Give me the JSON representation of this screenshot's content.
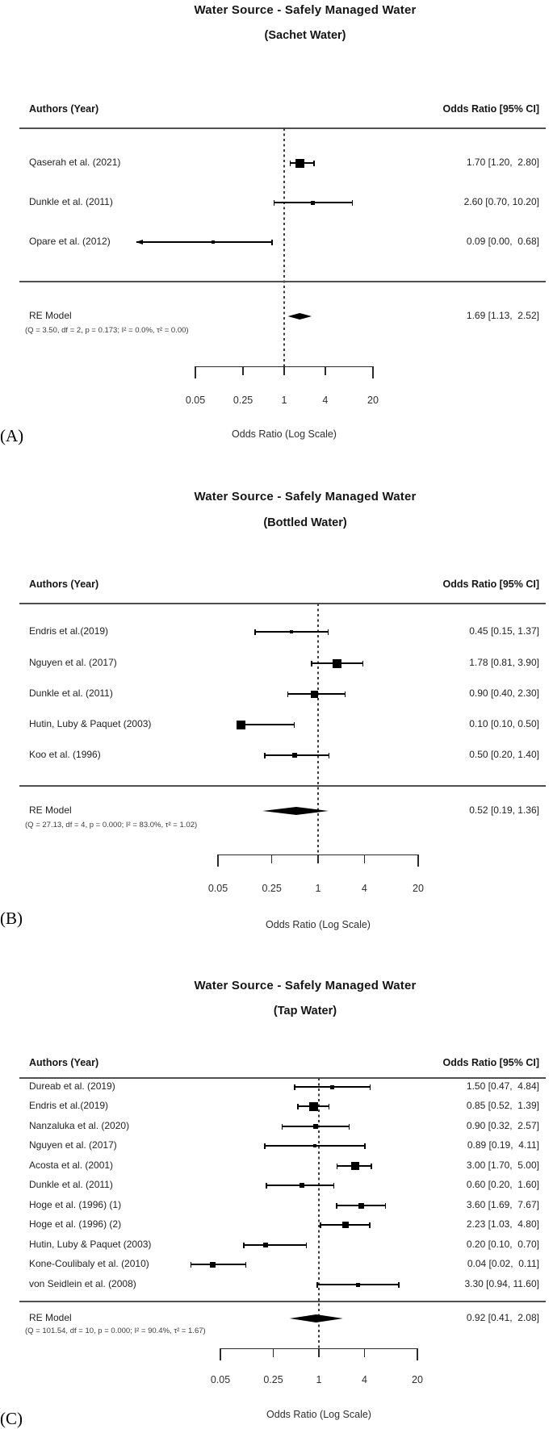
{
  "chart_data": [
    {
      "type": "forest",
      "title": "Water Source - Safely Managed Water",
      "subtitle": "(Sachet Water)",
      "letter": "(A)",
      "col_author": "Authors (Year)",
      "col_or": "Odds Ratio [95% CI]",
      "xlabel": "Odds Ratio (Log Scale)",
      "x_scale": "log",
      "x_range": [
        0.05,
        20
      ],
      "x_ticks": [
        0.05,
        0.25,
        1,
        4,
        20
      ],
      "x_tick_labels": [
        "0.05",
        "0.25",
        "1",
        "4",
        "20"
      ],
      "ref_line": 1,
      "studies": [
        {
          "author": "Qaserah et al. (2021)",
          "or": 1.7,
          "ci_low": 1.2,
          "ci_high": 2.8,
          "value_label": "1.70 [1.20,  2.80]",
          "marker_size": 11
        },
        {
          "author": "Dunkle et al. (2011)",
          "or": 2.6,
          "ci_low": 0.7,
          "ci_high": 10.2,
          "value_label": "2.60 [0.70, 10.20]",
          "marker_size": 5
        },
        {
          "author": "Opare et al. (2012)",
          "or": 0.09,
          "ci_low": 0.0,
          "ci_high": 0.68,
          "value_label": "0.09 [0.00,  0.68]",
          "marker_size": 4,
          "arrow_left": true
        }
      ],
      "re": {
        "label": "RE Model",
        "or": 1.69,
        "ci_low": 1.13,
        "ci_high": 2.52,
        "value_label": "1.69 [1.13,  2.52]",
        "stats": "(Q = 3.50, df = 2, p = 0.173; I² = 0.0%, τ² = 0.00)"
      }
    },
    {
      "type": "forest",
      "title": "Water Source - Safely Managed Water",
      "subtitle": "(Bottled Water)",
      "letter": "(B)",
      "col_author": "Authors (Year)",
      "col_or": "Odds Ratio [95% CI]",
      "xlabel": "Odds Ratio (Log Scale)",
      "x_scale": "log",
      "x_range": [
        0.05,
        20
      ],
      "x_ticks": [
        0.05,
        0.25,
        1,
        4,
        20
      ],
      "x_tick_labels": [
        "0.05",
        "0.25",
        "1",
        "4",
        "20"
      ],
      "ref_line": 1,
      "studies": [
        {
          "author": "Endris et al.(2019)",
          "or": 0.45,
          "ci_low": 0.15,
          "ci_high": 1.37,
          "value_label": "0.45 [0.15, 1.37]",
          "marker_size": 4
        },
        {
          "author": "Nguyen et al. (2017)",
          "or": 1.78,
          "ci_low": 0.81,
          "ci_high": 3.9,
          "value_label": "1.78 [0.81, 3.90]",
          "marker_size": 11
        },
        {
          "author": "Dunkle et al. (2011)",
          "or": 0.9,
          "ci_low": 0.4,
          "ci_high": 2.3,
          "value_label": "0.90 [0.40, 2.30]",
          "marker_size": 9
        },
        {
          "author": "Hutin, Luby & Paquet (2003)",
          "or": 0.1,
          "ci_low": 0.1,
          "ci_high": 0.5,
          "value_label": "0.10 [0.10, 0.50]",
          "marker_size": 11
        },
        {
          "author": "Koo et al. (1996)",
          "or": 0.5,
          "ci_low": 0.2,
          "ci_high": 1.4,
          "value_label": "0.50 [0.20, 1.40]",
          "marker_size": 6
        }
      ],
      "re": {
        "label": "RE Model",
        "or": 0.52,
        "ci_low": 0.19,
        "ci_high": 1.36,
        "value_label": "0.52 [0.19, 1.36]",
        "stats": "(Q = 27.13, df = 4, p = 0.000; I² = 83.0%, τ² = 1.02)"
      }
    },
    {
      "type": "forest",
      "title": "Water Source - Safely Managed Water",
      "subtitle": "(Tap Water)",
      "letter": "(C)",
      "col_author": "Authors (Year)",
      "col_or": "Odds Ratio [95% CI]",
      "xlabel": "Odds Ratio (Log Scale)",
      "x_scale": "log",
      "x_range": [
        0.05,
        20
      ],
      "x_ticks": [
        0.05,
        0.25,
        1,
        4,
        20
      ],
      "x_tick_labels": [
        "0.05",
        "0.25",
        "1",
        "4",
        "20"
      ],
      "ref_line": 1,
      "studies": [
        {
          "author": "Dureab et al. (2019)",
          "or": 1.5,
          "ci_low": 0.47,
          "ci_high": 4.84,
          "value_label": "1.50 [0.47,  4.84]",
          "marker_size": 5
        },
        {
          "author": "Endris et al.(2019)",
          "or": 0.85,
          "ci_low": 0.52,
          "ci_high": 1.39,
          "value_label": "0.85 [0.52,  1.39]",
          "marker_size": 11
        },
        {
          "author": "Nanzaluka et al. (2020)",
          "or": 0.9,
          "ci_low": 0.32,
          "ci_high": 2.57,
          "value_label": "0.90 [0.32,  2.57]",
          "marker_size": 6
        },
        {
          "author": "Nguyen et al. (2017)",
          "or": 0.89,
          "ci_low": 0.19,
          "ci_high": 4.11,
          "value_label": "0.89 [0.19,  4.11]",
          "marker_size": 4
        },
        {
          "author": "Acosta et al. (2001)",
          "or": 3.0,
          "ci_low": 1.7,
          "ci_high": 5.0,
          "value_label": "3.00 [1.70,  5.00]",
          "marker_size": 10
        },
        {
          "author": "Dunkle et al. (2011)",
          "or": 0.6,
          "ci_low": 0.2,
          "ci_high": 1.6,
          "value_label": "0.60 [0.20,  1.60]",
          "marker_size": 6
        },
        {
          "author": "Hoge et al. (1996) (1)",
          "or": 3.6,
          "ci_low": 1.69,
          "ci_high": 7.67,
          "value_label": "3.60 [1.69,  7.67]",
          "marker_size": 7
        },
        {
          "author": "Hoge et al. (1996) (2)",
          "or": 2.23,
          "ci_low": 1.03,
          "ci_high": 4.8,
          "value_label": "2.23 [1.03,  4.80]",
          "marker_size": 8
        },
        {
          "author": "Hutin, Luby & Paquet (2003)",
          "or": 0.2,
          "ci_low": 0.1,
          "ci_high": 0.7,
          "value_label": "0.20 [0.10,  0.70]",
          "marker_size": 6
        },
        {
          "author": "Kone-Coulibaly et al. (2010)",
          "or": 0.04,
          "ci_low": 0.02,
          "ci_high": 0.11,
          "value_label": "0.04 [0.02,  0.11]",
          "marker_size": 7
        },
        {
          "author": "von Seidlein et al. (2008)",
          "or": 3.3,
          "ci_low": 0.94,
          "ci_high": 11.6,
          "value_label": "3.30 [0.94, 11.60]",
          "marker_size": 5
        }
      ],
      "re": {
        "label": "RE Model",
        "or": 0.92,
        "ci_low": 0.41,
        "ci_high": 2.08,
        "value_label": "0.92 [0.41,  2.08]",
        "stats": "(Q = 101.54, df = 10, p = 0.000; I² = 90.4%, τ² = 1.67)"
      }
    }
  ]
}
